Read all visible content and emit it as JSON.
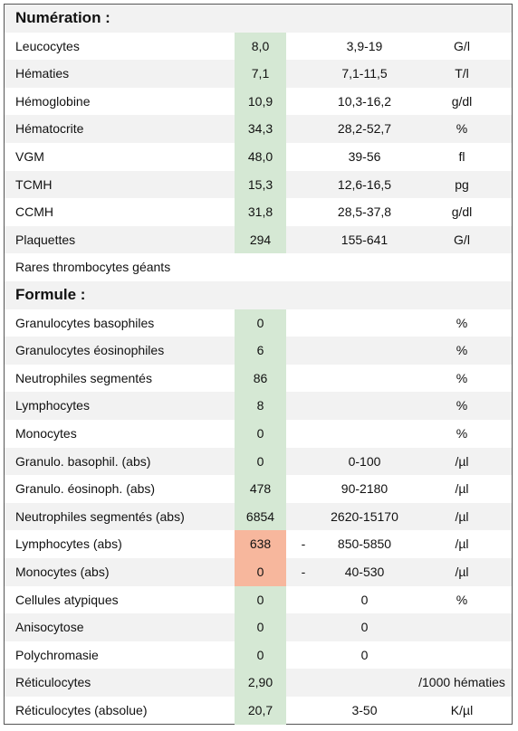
{
  "value_color": "#d5e8d4",
  "sections": [
    {
      "title": "Numération :",
      "rows": [
        {
          "name": "Leucocytes",
          "value": "8,0",
          "range": "3,9-19",
          "unit": "G/l"
        },
        {
          "name": "Hématies",
          "value": "7,1",
          "range": "7,1-11,5",
          "unit": "T/l"
        },
        {
          "name": "Hémoglobine",
          "value": "10,9",
          "range": "10,3-16,2",
          "unit": "g/dl"
        },
        {
          "name": "Hématocrite",
          "value": "34,3",
          "range": "28,2-52,7",
          "unit": "%"
        },
        {
          "name": "VGM",
          "value": "48,0",
          "range": "39-56",
          "unit": "fl"
        },
        {
          "name": "TCMH",
          "value": "15,3",
          "range": "12,6-16,5",
          "unit": "pg"
        },
        {
          "name": "CCMH",
          "value": "31,8",
          "range": "28,5-37,8",
          "unit": "g/dl"
        },
        {
          "name": "Plaquettes",
          "value": "294",
          "range": "155-641",
          "unit": "G/l"
        },
        {
          "name": "Rares thrombocytes géants"
        }
      ]
    },
    {
      "title": "Formule :",
      "rows": [
        {
          "name": "Granulocytes basophiles",
          "value": "0",
          "unit": "%"
        },
        {
          "name": "Granulocytes éosinophiles",
          "value": "6",
          "unit": "%"
        },
        {
          "name": "Neutrophiles segmentés",
          "value": "86",
          "unit": "%"
        },
        {
          "name": "Lymphocytes",
          "value": "8",
          "unit": "%"
        },
        {
          "name": "Monocytes",
          "value": "0",
          "unit": "%"
        },
        {
          "name": "Granulo. basophil. (abs)",
          "value": "0",
          "range": "0-100",
          "unit": "/µl"
        },
        {
          "name": "Granulo. éosinoph. (abs)",
          "value": "478",
          "range": "90-2180",
          "unit": "/µl"
        },
        {
          "name": "Neutrophiles segmentés (abs)",
          "value": "6854",
          "range": "2620-15170",
          "unit": "/µl"
        },
        {
          "name": "Lymphocytes (abs)",
          "value": "638",
          "value_color": "#f7b79d",
          "flag": "-",
          "range": "850-5850",
          "unit": "/µl"
        },
        {
          "name": "Monocytes (abs)",
          "value": "0",
          "value_color": "#f7b79d",
          "flag": "-",
          "range": "40-530",
          "unit": "/µl"
        },
        {
          "name": "Cellules atypiques",
          "value": "0",
          "range": "0",
          "unit": "%"
        },
        {
          "name": "Anisocytose",
          "value": "0",
          "range": "0"
        },
        {
          "name": "Polychromasie",
          "value": "0",
          "range": "0"
        },
        {
          "name": "Réticulocytes",
          "value": "2,90",
          "unit": "/1000 hématies"
        },
        {
          "name": "Réticulocytes (absolue)",
          "value": "20,7",
          "range": "3-50",
          "unit": "K/µl"
        }
      ]
    }
  ]
}
